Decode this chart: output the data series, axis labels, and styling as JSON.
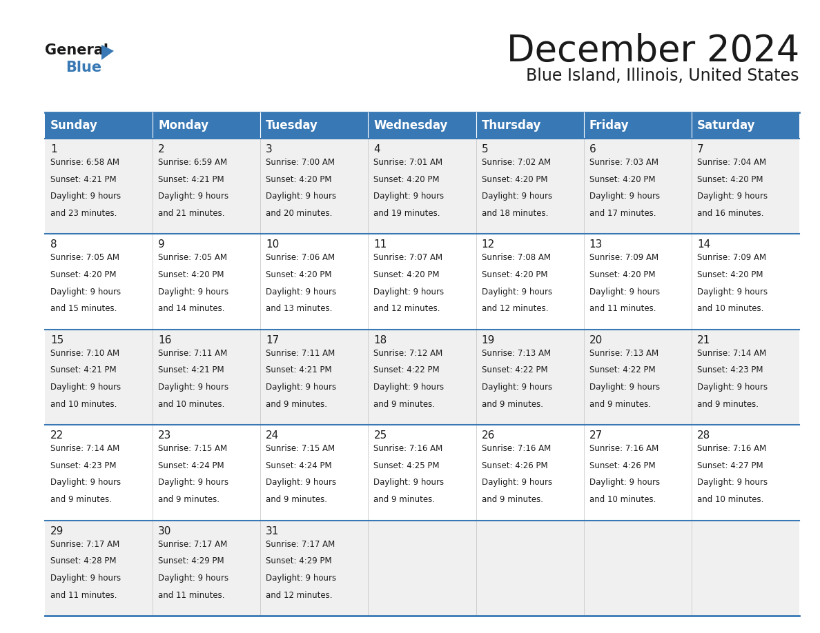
{
  "title": "December 2024",
  "subtitle": "Blue Island, Illinois, United States",
  "header_color": "#3878b4",
  "header_text_color": "#ffffff",
  "row_bg_odd": "#f0f0f0",
  "row_bg_even": "#ffffff",
  "border_color": "#3878b4",
  "text_color": "#1a1a1a",
  "day_headers": [
    "Sunday",
    "Monday",
    "Tuesday",
    "Wednesday",
    "Thursday",
    "Friday",
    "Saturday"
  ],
  "weeks": [
    [
      {
        "day": 1,
        "sunrise": "6:58 AM",
        "sunset": "4:21 PM",
        "daylight": "9 hours and 23 minutes."
      },
      {
        "day": 2,
        "sunrise": "6:59 AM",
        "sunset": "4:21 PM",
        "daylight": "9 hours and 21 minutes."
      },
      {
        "day": 3,
        "sunrise": "7:00 AM",
        "sunset": "4:20 PM",
        "daylight": "9 hours and 20 minutes."
      },
      {
        "day": 4,
        "sunrise": "7:01 AM",
        "sunset": "4:20 PM",
        "daylight": "9 hours and 19 minutes."
      },
      {
        "day": 5,
        "sunrise": "7:02 AM",
        "sunset": "4:20 PM",
        "daylight": "9 hours and 18 minutes."
      },
      {
        "day": 6,
        "sunrise": "7:03 AM",
        "sunset": "4:20 PM",
        "daylight": "9 hours and 17 minutes."
      },
      {
        "day": 7,
        "sunrise": "7:04 AM",
        "sunset": "4:20 PM",
        "daylight": "9 hours and 16 minutes."
      }
    ],
    [
      {
        "day": 8,
        "sunrise": "7:05 AM",
        "sunset": "4:20 PM",
        "daylight": "9 hours and 15 minutes."
      },
      {
        "day": 9,
        "sunrise": "7:05 AM",
        "sunset": "4:20 PM",
        "daylight": "9 hours and 14 minutes."
      },
      {
        "day": 10,
        "sunrise": "7:06 AM",
        "sunset": "4:20 PM",
        "daylight": "9 hours and 13 minutes."
      },
      {
        "day": 11,
        "sunrise": "7:07 AM",
        "sunset": "4:20 PM",
        "daylight": "9 hours and 12 minutes."
      },
      {
        "day": 12,
        "sunrise": "7:08 AM",
        "sunset": "4:20 PM",
        "daylight": "9 hours and 12 minutes."
      },
      {
        "day": 13,
        "sunrise": "7:09 AM",
        "sunset": "4:20 PM",
        "daylight": "9 hours and 11 minutes."
      },
      {
        "day": 14,
        "sunrise": "7:09 AM",
        "sunset": "4:20 PM",
        "daylight": "9 hours and 10 minutes."
      }
    ],
    [
      {
        "day": 15,
        "sunrise": "7:10 AM",
        "sunset": "4:21 PM",
        "daylight": "9 hours and 10 minutes."
      },
      {
        "day": 16,
        "sunrise": "7:11 AM",
        "sunset": "4:21 PM",
        "daylight": "9 hours and 10 minutes."
      },
      {
        "day": 17,
        "sunrise": "7:11 AM",
        "sunset": "4:21 PM",
        "daylight": "9 hours and 9 minutes."
      },
      {
        "day": 18,
        "sunrise": "7:12 AM",
        "sunset": "4:22 PM",
        "daylight": "9 hours and 9 minutes."
      },
      {
        "day": 19,
        "sunrise": "7:13 AM",
        "sunset": "4:22 PM",
        "daylight": "9 hours and 9 minutes."
      },
      {
        "day": 20,
        "sunrise": "7:13 AM",
        "sunset": "4:22 PM",
        "daylight": "9 hours and 9 minutes."
      },
      {
        "day": 21,
        "sunrise": "7:14 AM",
        "sunset": "4:23 PM",
        "daylight": "9 hours and 9 minutes."
      }
    ],
    [
      {
        "day": 22,
        "sunrise": "7:14 AM",
        "sunset": "4:23 PM",
        "daylight": "9 hours and 9 minutes."
      },
      {
        "day": 23,
        "sunrise": "7:15 AM",
        "sunset": "4:24 PM",
        "daylight": "9 hours and 9 minutes."
      },
      {
        "day": 24,
        "sunrise": "7:15 AM",
        "sunset": "4:24 PM",
        "daylight": "9 hours and 9 minutes."
      },
      {
        "day": 25,
        "sunrise": "7:16 AM",
        "sunset": "4:25 PM",
        "daylight": "9 hours and 9 minutes."
      },
      {
        "day": 26,
        "sunrise": "7:16 AM",
        "sunset": "4:26 PM",
        "daylight": "9 hours and 9 minutes."
      },
      {
        "day": 27,
        "sunrise": "7:16 AM",
        "sunset": "4:26 PM",
        "daylight": "9 hours and 10 minutes."
      },
      {
        "day": 28,
        "sunrise": "7:16 AM",
        "sunset": "4:27 PM",
        "daylight": "9 hours and 10 minutes."
      }
    ],
    [
      {
        "day": 29,
        "sunrise": "7:17 AM",
        "sunset": "4:28 PM",
        "daylight": "9 hours and 11 minutes."
      },
      {
        "day": 30,
        "sunrise": "7:17 AM",
        "sunset": "4:29 PM",
        "daylight": "9 hours and 11 minutes."
      },
      {
        "day": 31,
        "sunrise": "7:17 AM",
        "sunset": "4:29 PM",
        "daylight": "9 hours and 12 minutes."
      },
      null,
      null,
      null,
      null
    ]
  ],
  "logo_general_color": "#1a1a1a",
  "logo_blue_color": "#3878b4",
  "title_fontsize": 38,
  "subtitle_fontsize": 17,
  "header_fontsize": 12,
  "day_num_fontsize": 11,
  "cell_text_fontsize": 8.5
}
